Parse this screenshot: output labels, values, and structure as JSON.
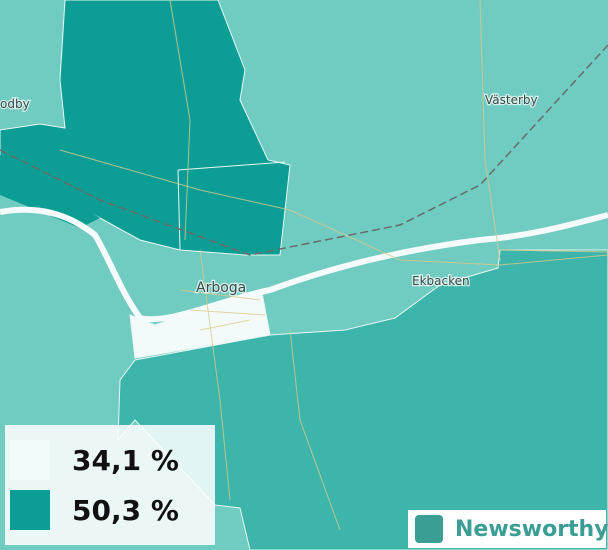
{
  "places": [
    "odby",
    "Västerby",
    "Arboga",
    "Ekbacken"
  ],
  "legend": [
    {
      "label": "34,1 %",
      "color": "#f3fbfa"
    },
    {
      "label": "50,3 %",
      "color": "#0c9e94"
    }
  ],
  "logo": "Newsworthy"
}
